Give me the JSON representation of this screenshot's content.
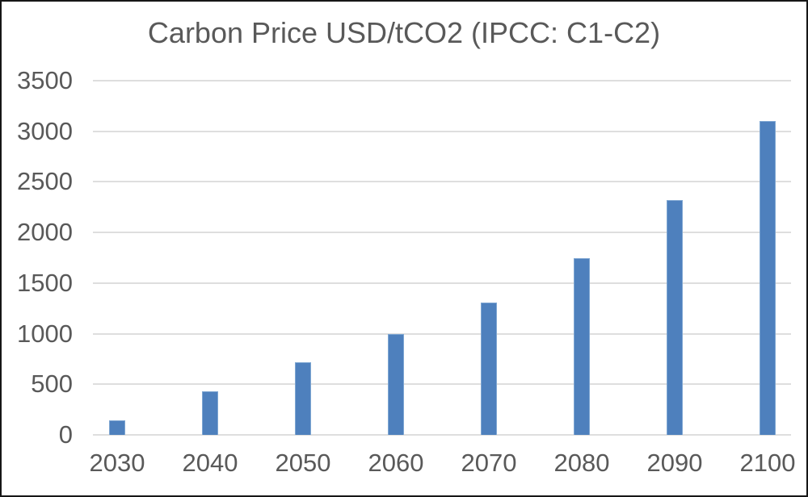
{
  "chart_data": {
    "type": "bar",
    "title": "Carbon Price USD/tCO2 (IPCC: C1-C2)",
    "categories": [
      "2030",
      "2040",
      "2050",
      "2060",
      "2070",
      "2080",
      "2090",
      "2100"
    ],
    "values": [
      140,
      430,
      715,
      1000,
      1310,
      1750,
      2320,
      3100
    ],
    "series_name": "Carbon Price USD/tCO2",
    "xlabel": "",
    "ylabel": "",
    "ylim": [
      0,
      3500
    ],
    "yticks": [
      0,
      500,
      1000,
      1500,
      2000,
      2500,
      3000,
      3500
    ],
    "grid": "horizontal",
    "legend_position": "none",
    "colors": {
      "bar_fill": "#4e80bd",
      "bar_border": "#7ea6d2",
      "text": "#595959",
      "gridline": "#dedede",
      "background": "#ffffff",
      "frame_border": "#161616"
    }
  }
}
